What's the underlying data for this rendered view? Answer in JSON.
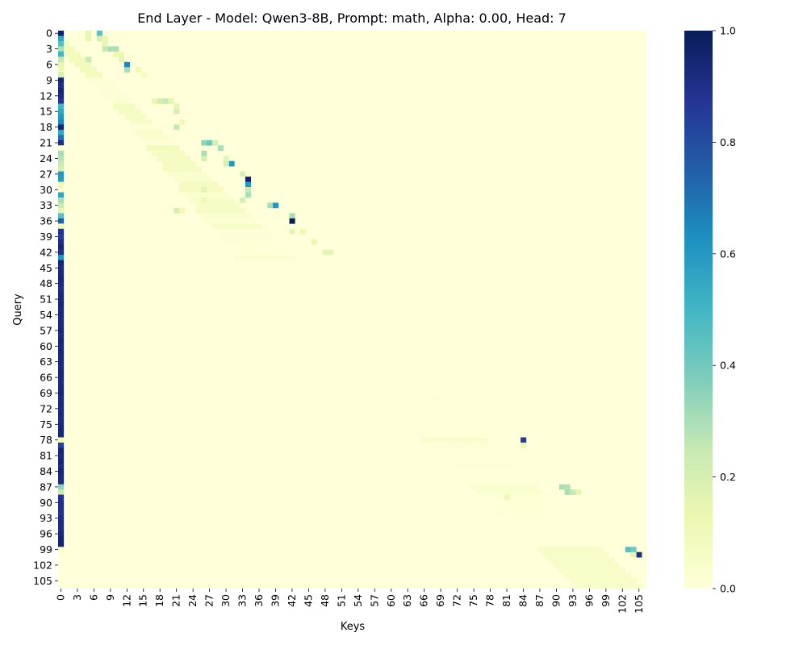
{
  "chart_data": {
    "type": "heatmap",
    "title": "End Layer - Model: Qwen3-8B, Prompt: math, Alpha: 0.00, Head: 7",
    "xlabel": "Keys",
    "ylabel": "Query",
    "n_rows": 107,
    "n_cols": 107,
    "x_tick_labels": [
      "0",
      "3",
      "6",
      "9",
      "12",
      "15",
      "18",
      "21",
      "24",
      "27",
      "30",
      "33",
      "36",
      "39",
      "42",
      "45",
      "48",
      "51",
      "54",
      "57",
      "60",
      "63",
      "66",
      "69",
      "72",
      "75",
      "78",
      "81",
      "84",
      "87",
      "90",
      "93",
      "96",
      "99",
      "102",
      "105"
    ],
    "y_tick_labels": [
      "0",
      "3",
      "6",
      "9",
      "12",
      "15",
      "18",
      "21",
      "24",
      "27",
      "30",
      "33",
      "36",
      "39",
      "42",
      "45",
      "48",
      "51",
      "54",
      "57",
      "60",
      "63",
      "66",
      "69",
      "72",
      "75",
      "78",
      "81",
      "84",
      "87",
      "90",
      "93",
      "96",
      "99",
      "102",
      "105"
    ],
    "colorbar": {
      "colormap": "YlGnBu",
      "vmin": 0.0,
      "vmax": 1.0,
      "tick_labels": [
        "0.0",
        "0.2",
        "0.4",
        "0.6",
        "0.8",
        "1.0"
      ],
      "stops": [
        "#ffffd9",
        "#edf8b1",
        "#c7e9b4",
        "#7fcdbb",
        "#41b6c4",
        "#1d91c0",
        "#225ea8",
        "#253494",
        "#081d58"
      ]
    },
    "description_note": "",
    "sink_column_0": [
      0.97,
      0.55,
      0.45,
      0.3,
      0.5,
      0.25,
      0.15,
      0.1,
      0.2,
      0.95,
      0.9,
      0.95,
      0.92,
      0.88,
      0.5,
      0.55,
      0.6,
      0.65,
      0.95,
      0.55,
      0.7,
      0.9,
      0.02,
      0.3,
      0.28,
      0.25,
      0.2,
      0.6,
      0.58,
      0.1,
      0.05,
      0.55,
      0.3,
      0.25,
      0.15,
      0.45,
      0.75,
      0.1,
      0.88,
      0.85,
      0.9,
      0.95,
      0.9,
      0.6,
      0.95,
      0.92,
      0.93,
      0.95,
      0.92,
      0.9,
      0.93,
      0.93,
      0.94,
      0.92,
      0.93,
      0.92,
      0.93,
      0.94,
      0.92,
      0.95,
      0.93,
      0.94,
      0.92,
      0.93,
      0.92,
      0.94,
      0.93,
      0.92,
      0.93,
      0.94,
      0.92,
      0.93,
      0.92,
      0.93,
      0.92,
      0.93,
      0.94,
      0.93,
      0.1,
      0.82,
      0.95,
      0.93,
      0.94,
      0.92,
      0.95,
      0.93,
      0.92,
      0.35,
      0.25,
      0.88,
      0.9,
      0.89,
      0.88,
      0.9,
      0.92,
      0.91,
      0.93,
      0.95,
      0.95,
      0.02,
      0.0,
      0.0,
      0.0,
      0.0,
      0.0,
      0.0,
      0.0
    ],
    "highlights": [
      {
        "q": 0,
        "k": 7,
        "v": 0.45
      },
      {
        "q": 0,
        "k": 5,
        "v": 0.15
      },
      {
        "q": 1,
        "k": 5,
        "v": 0.15
      },
      {
        "q": 1,
        "k": 7,
        "v": 0.2
      },
      {
        "q": 1,
        "k": 8,
        "v": 0.12
      },
      {
        "q": 2,
        "k": 8,
        "v": 0.15
      },
      {
        "q": 3,
        "k": 9,
        "v": 0.3
      },
      {
        "q": 3,
        "k": 10,
        "v": 0.3
      },
      {
        "q": 3,
        "k": 8,
        "v": 0.25
      },
      {
        "q": 4,
        "k": 10,
        "v": 0.12
      },
      {
        "q": 4,
        "k": 11,
        "v": 0.12
      },
      {
        "q": 5,
        "k": 5,
        "v": 0.25
      },
      {
        "q": 5,
        "k": 11,
        "v": 0.15
      },
      {
        "q": 6,
        "k": 12,
        "v": 0.65
      },
      {
        "q": 7,
        "k": 12,
        "v": 0.3
      },
      {
        "q": 7,
        "k": 14,
        "v": 0.12
      },
      {
        "q": 8,
        "k": 15,
        "v": 0.08
      },
      {
        "q": 13,
        "k": 18,
        "v": 0.2
      },
      {
        "q": 13,
        "k": 19,
        "v": 0.25
      },
      {
        "q": 13,
        "k": 20,
        "v": 0.15
      },
      {
        "q": 13,
        "k": 17,
        "v": 0.12
      },
      {
        "q": 14,
        "k": 21,
        "v": 0.15
      },
      {
        "q": 15,
        "k": 21,
        "v": 0.2
      },
      {
        "q": 18,
        "k": 21,
        "v": 0.25
      },
      {
        "q": 17,
        "k": 22,
        "v": 0.1
      },
      {
        "q": 21,
        "k": 26,
        "v": 0.35
      },
      {
        "q": 21,
        "k": 27,
        "v": 0.4
      },
      {
        "q": 21,
        "k": 28,
        "v": 0.2
      },
      {
        "q": 22,
        "k": 29,
        "v": 0.3
      },
      {
        "q": 23,
        "k": 26,
        "v": 0.3
      },
      {
        "q": 24,
        "k": 26,
        "v": 0.2
      },
      {
        "q": 24,
        "k": 30,
        "v": 0.15
      },
      {
        "q": 25,
        "k": 31,
        "v": 0.6
      },
      {
        "q": 25,
        "k": 30,
        "v": 0.2
      },
      {
        "q": 27,
        "k": 33,
        "v": 0.2
      },
      {
        "q": 28,
        "k": 34,
        "v": 0.97
      },
      {
        "q": 29,
        "k": 34,
        "v": 0.6
      },
      {
        "q": 30,
        "k": 34,
        "v": 0.25
      },
      {
        "q": 30,
        "k": 26,
        "v": 0.15
      },
      {
        "q": 31,
        "k": 34,
        "v": 0.3
      },
      {
        "q": 32,
        "k": 33,
        "v": 0.2
      },
      {
        "q": 32,
        "k": 26,
        "v": 0.12
      },
      {
        "q": 33,
        "k": 38,
        "v": 0.3
      },
      {
        "q": 33,
        "k": 39,
        "v": 0.6
      },
      {
        "q": 34,
        "k": 21,
        "v": 0.2
      },
      {
        "q": 34,
        "k": 22,
        "v": 0.1
      },
      {
        "q": 35,
        "k": 42,
        "v": 0.3
      },
      {
        "q": 36,
        "k": 42,
        "v": 1.0
      },
      {
        "q": 38,
        "k": 42,
        "v": 0.15
      },
      {
        "q": 38,
        "k": 44,
        "v": 0.12
      },
      {
        "q": 40,
        "k": 46,
        "v": 0.12
      },
      {
        "q": 42,
        "k": 48,
        "v": 0.15
      },
      {
        "q": 42,
        "k": 49,
        "v": 0.15
      },
      {
        "q": 78,
        "k": 84,
        "v": 0.85
      },
      {
        "q": 79,
        "k": 84,
        "v": 0.12
      },
      {
        "q": 87,
        "k": 91,
        "v": 0.3
      },
      {
        "q": 87,
        "k": 92,
        "v": 0.28
      },
      {
        "q": 88,
        "k": 92,
        "v": 0.3
      },
      {
        "q": 88,
        "k": 93,
        "v": 0.25
      },
      {
        "q": 88,
        "k": 94,
        "v": 0.15
      },
      {
        "q": 89,
        "k": 81,
        "v": 0.1
      },
      {
        "q": 99,
        "k": 103,
        "v": 0.45
      },
      {
        "q": 99,
        "k": 104,
        "v": 0.4
      },
      {
        "q": 100,
        "k": 105,
        "v": 0.9
      },
      {
        "q": 100,
        "k": 104,
        "v": 0.15
      }
    ]
  }
}
